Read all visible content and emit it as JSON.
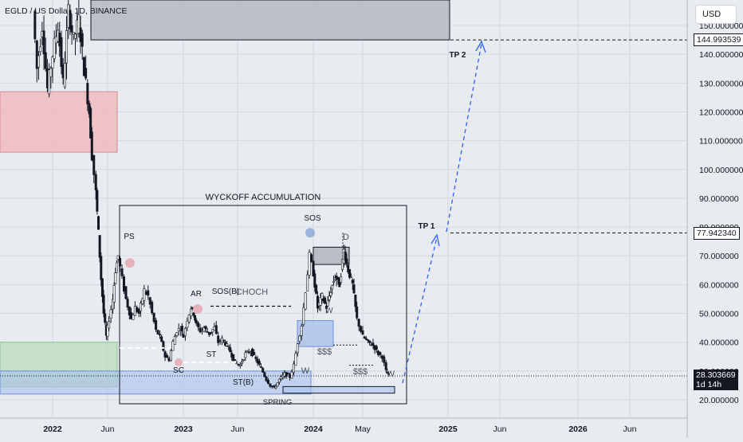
{
  "header": {
    "title": "EGLD / US Dolla , 1D, BINANCE",
    "currency_button": "USD"
  },
  "chart_data": {
    "type": "candlestick",
    "symbol": "EGLD / US Dollar",
    "interval": "1D",
    "exchange": "BINANCE",
    "x_tick_labels": [
      "2022",
      "Jun",
      "2023",
      "Jun",
      "2024",
      "May",
      "2025",
      "Jun",
      "2026",
      "Jun"
    ],
    "y_tick_labels": [
      "150.000000",
      "140.000000",
      "130.000000",
      "120.000000",
      "110.000000",
      "100.000000",
      "90.000000",
      "80.000000",
      "70.000000",
      "60.000000",
      "50.000000",
      "40.000000",
      "30.000000",
      "20.000000"
    ],
    "ylim": [
      17,
      150
    ],
    "price_markers": [
      {
        "label": "144.993539",
        "value": 144.99
      },
      {
        "label": "77.942340",
        "value": 77.94
      },
      {
        "label": "28.303669",
        "sub": "1d 14h",
        "value": 28.3
      }
    ],
    "annotations": {
      "box_title": "WYCKOFF ACCUMULATION",
      "ps": "PS",
      "sc": "SC",
      "ar": "AR",
      "st": "ST",
      "st_b": "ST(B)",
      "sos_b": "SOS(B)",
      "choch": "CHOCH",
      "spring": "SPRING",
      "sos": "SOS",
      "d": "D",
      "w1": "W",
      "w2": "W",
      "w3": "W",
      "money1": "$$$",
      "money2": "$$$",
      "tp1": "TP 1",
      "tp2": "TP 2"
    },
    "colors": {
      "bull": "#ffffff",
      "bear": "#131722",
      "supply_zone": "#f2b4b8",
      "demand_zone": "#b6dab8",
      "blue_zone": "#a9c2ec",
      "projection_arrow": "#2962ff",
      "current_price_tag": "#131722"
    },
    "grid": true,
    "price_path": [
      [
        2021.85,
        155
      ],
      [
        2021.88,
        135
      ],
      [
        2021.92,
        150
      ],
      [
        2021.96,
        128
      ],
      [
        2022.0,
        140
      ],
      [
        2022.04,
        150
      ],
      [
        2022.08,
        130
      ],
      [
        2022.12,
        155
      ],
      [
        2022.16,
        145
      ],
      [
        2022.2,
        152
      ],
      [
        2022.24,
        135
      ],
      [
        2022.28,
        120
      ],
      [
        2022.3,
        105
      ],
      [
        2022.33,
        92
      ],
      [
        2022.35,
        78
      ],
      [
        2022.37,
        62
      ],
      [
        2022.39,
        50
      ],
      [
        2022.41,
        42
      ],
      [
        2022.43,
        48
      ],
      [
        2022.46,
        55
      ],
      [
        2022.48,
        65
      ],
      [
        2022.5,
        70
      ],
      [
        2022.53,
        62
      ],
      [
        2022.56,
        55
      ],
      [
        2022.6,
        48
      ],
      [
        2022.63,
        52
      ],
      [
        2022.66,
        50
      ],
      [
        2022.7,
        58
      ],
      [
        2022.73,
        56
      ],
      [
        2022.76,
        50
      ],
      [
        2022.79,
        44
      ],
      [
        2022.82,
        42
      ],
      [
        2022.86,
        35
      ],
      [
        2022.89,
        34
      ],
      [
        2022.92,
        40
      ],
      [
        2022.95,
        44
      ],
      [
        2022.98,
        45
      ],
      [
        2023.0,
        42
      ],
      [
        2023.03,
        48
      ],
      [
        2023.06,
        52
      ],
      [
        2023.08,
        50
      ],
      [
        2023.1,
        46
      ],
      [
        2023.13,
        44
      ],
      [
        2023.16,
        45
      ],
      [
        2023.2,
        43
      ],
      [
        2023.24,
        45
      ],
      [
        2023.27,
        40
      ],
      [
        2023.3,
        41
      ],
      [
        2023.35,
        38
      ],
      [
        2023.4,
        33
      ],
      [
        2023.44,
        32
      ],
      [
        2023.48,
        36
      ],
      [
        2023.52,
        37
      ],
      [
        2023.56,
        34
      ],
      [
        2023.6,
        31
      ],
      [
        2023.64,
        27
      ],
      [
        2023.67,
        25
      ],
      [
        2023.7,
        24
      ],
      [
        2023.74,
        27
      ],
      [
        2023.78,
        29
      ],
      [
        2023.82,
        28
      ],
      [
        2023.85,
        32
      ],
      [
        2023.88,
        40
      ],
      [
        2023.91,
        46
      ],
      [
        2023.94,
        58
      ],
      [
        2023.97,
        70
      ],
      [
        2024.0,
        64
      ],
      [
        2024.03,
        52
      ],
      [
        2024.06,
        56
      ],
      [
        2024.09,
        52
      ],
      [
        2024.12,
        58
      ],
      [
        2024.15,
        63
      ],
      [
        2024.18,
        60
      ],
      [
        2024.21,
        72
      ],
      [
        2024.24,
        65
      ],
      [
        2024.27,
        60
      ],
      [
        2024.3,
        48
      ],
      [
        2024.34,
        42
      ],
      [
        2024.38,
        40
      ],
      [
        2024.42,
        39
      ],
      [
        2024.46,
        36
      ],
      [
        2024.49,
        35
      ],
      [
        2024.52,
        30
      ],
      [
        2024.54,
        28.3
      ]
    ]
  }
}
